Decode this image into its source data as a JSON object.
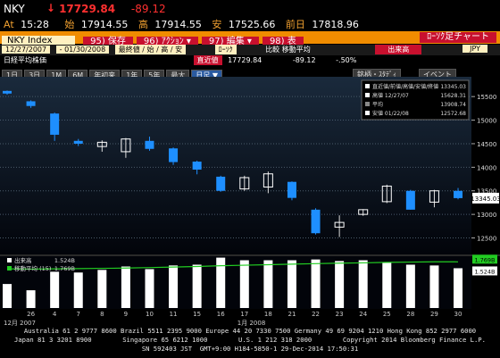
{
  "header": {
    "ticker": "NKY",
    "last": "17729.84",
    "change": "-89.12",
    "time_label": "At",
    "time": "15:28",
    "open_label": "始",
    "open": "17914.55",
    "high_label": "高",
    "high": "17914.55",
    "low_label": "安",
    "low": "17525.66",
    "prev_label": "前日",
    "prev": "17818.96"
  },
  "toolbar": {
    "security": "NKY Index",
    "buttons": [
      "95) 保存",
      "96) ｱｸｼｮﾝ ▾",
      "97) 編集 ▾",
      "98) 表"
    ],
    "chart_name": "ﾛｰｿｸ足チャート"
  },
  "settings": {
    "start": "12/27/2007",
    "end": "- 01/30/2008",
    "fields": "最終値 / 始 / 高 / 安",
    "style": "ﾛｰｿｸ",
    "compare": "比較 移動平均",
    "volume": "出来高",
    "currency": "JPY"
  },
  "info": {
    "name": "日経平均株価",
    "last_label": "直近値",
    "last": "17729.84",
    "change": "-89.12",
    "pct": "-.50%"
  },
  "periods": [
    "1日",
    "3日",
    "1M",
    "6M",
    "年初来",
    "1年",
    "5年",
    "最大",
    "日足 ▼"
  ],
  "tools": [
    "銘柄・ｽﾀﾃﾞｨ",
    "イベント"
  ],
  "chart_data": [
    {
      "type": "candlestick",
      "categories": [
        null,
        "26",
        "4",
        "7",
        "8",
        "9",
        "10",
        "11",
        "15",
        "16",
        "17",
        "18",
        "21",
        "22",
        "23",
        "24",
        "25",
        "28",
        "29",
        "30"
      ],
      "month_labels": [
        "12月 2007",
        "1月 2008"
      ],
      "open": [
        15620,
        15400,
        15140,
        14560,
        14440,
        14330,
        14560,
        14400,
        14120,
        13800,
        13540,
        13580,
        13690,
        13100,
        12730,
        13000,
        13270,
        13500,
        13260,
        13500
      ],
      "high": [
        15628.31,
        15420,
        15160,
        14600,
        14570,
        14620,
        14650,
        14420,
        14140,
        13820,
        13820,
        13910,
        13700,
        13130,
        12980,
        13110,
        13630,
        13520,
        13520,
        13560
      ],
      "low": [
        15540,
        15260,
        14560,
        14450,
        14330,
        14200,
        14350,
        14050,
        13850,
        13480,
        13500,
        13450,
        13300,
        12572.68,
        12520,
        12970,
        13240,
        13100,
        13150,
        13320
      ],
      "close": [
        15564,
        15300,
        14690,
        14500,
        14530,
        14600,
        14390,
        14110,
        13950,
        13500,
        13780,
        13860,
        13350,
        12600,
        12830,
        13100,
        13600,
        13100,
        13500,
        13345.03
      ],
      "up_color": "#ffffff",
      "down_color": "#1e8fff",
      "ylim": [
        12150,
        15920
      ],
      "yticks": [
        12500,
        13000,
        13500,
        14000,
        14500,
        15000,
        15500
      ],
      "grid": true,
      "last_label": "13345.03",
      "legend": [
        {
          "label": "直近値/前値/高値/安値/終値",
          "value": "13345.03"
        },
        {
          "label": "高値 12/27/07",
          "value": "15628.31"
        },
        {
          "label": "平均",
          "value": "13908.74"
        },
        {
          "label": "安値 01/22/08",
          "value": "12572.68"
        }
      ]
    },
    {
      "type": "bar",
      "series": [
        {
          "name": "出来高",
          "color": "#ffffff",
          "legend_value": "1.524B",
          "values": [
            0.92,
            0.68,
            1.39,
            1.36,
            1.46,
            1.59,
            1.49,
            1.63,
            1.66,
            1.93,
            1.83,
            1.83,
            1.83,
            1.86,
            1.8,
            1.83,
            1.76,
            1.66,
            1.63,
            1.524
          ]
        },
        {
          "name": "移動平均 (15)",
          "color": "#22cc22",
          "legend_value": "1.769B",
          "values": [
            1.5,
            1.49,
            1.5,
            1.51,
            1.52,
            1.53,
            1.55,
            1.57,
            1.59,
            1.62,
            1.64,
            1.66,
            1.68,
            1.7,
            1.72,
            1.73,
            1.75,
            1.76,
            1.77,
            1.769
          ]
        }
      ],
      "ylim": [
        0,
        1.95
      ]
    }
  ],
  "footer": [
    "Australia 61 2 9777 8600 Brazil 5511 2395 9000 Europe 44 20 7330 7500 Germany 49 69 9204 1210 Hong Kong 852 2977 6000",
    "Japan 81 3 3201 8900        Singapore 65 6212 1000        U.S. 1 212 318 2000        Copyright 2014 Bloomberg Finance L.P.",
    "SN 592403 JST  GMT+9:00 H184-5850-1 29-Dec-2014 17:50:31"
  ]
}
